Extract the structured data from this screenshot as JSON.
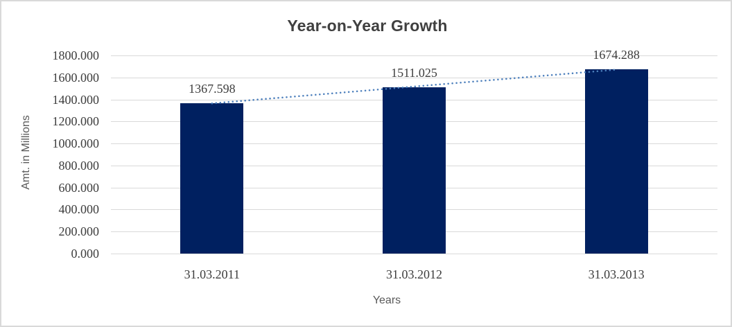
{
  "chart_data": {
    "type": "bar",
    "title": "Year-on-Year Growth",
    "xlabel": "Years",
    "ylabel": "Amt. in Millions",
    "categories": [
      "31.03.2011",
      "31.03.2012",
      "31.03.2013"
    ],
    "values": [
      1367.598,
      1511.025,
      1674.288
    ],
    "data_labels": [
      "1367.598",
      "1511.025",
      "1674.288"
    ],
    "ylim": [
      0,
      1800
    ],
    "ytick_labels": [
      "1800.000",
      "1600.000",
      "1400.000",
      "1200.000",
      "1000.000",
      "800.000",
      "600.000",
      "400.000",
      "200.000",
      "0.000"
    ],
    "grid": true,
    "legend": false,
    "bar_color": "#002060",
    "gridline_color": "#d9d9d9",
    "label_color": "#3d3d3d",
    "axis_title_color": "#595959",
    "trendline": {
      "type": "linear",
      "style": "dotted",
      "color": "#4f81bd",
      "fitted_endpoints": [
        1364.292,
        1670.982
      ]
    }
  }
}
